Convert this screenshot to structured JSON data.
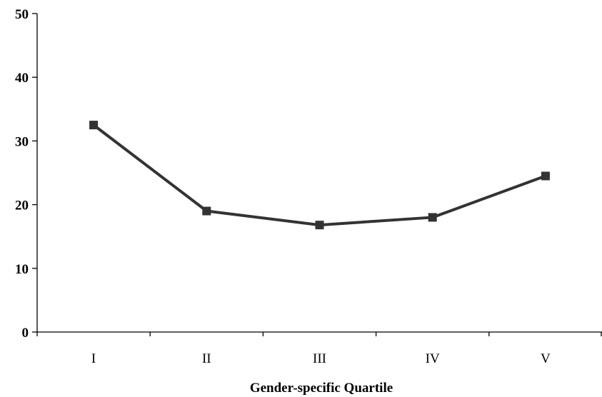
{
  "chart_data": {
    "type": "line",
    "categories": [
      "I",
      "II",
      "III",
      "IV",
      "V"
    ],
    "series": [
      {
        "values": [
          32.5,
          19.0,
          16.8,
          18.0,
          24.5
        ],
        "color": "#333333",
        "marker": "square"
      }
    ],
    "xlabel": "Gender-specific Quartile",
    "ylabel": "",
    "ylim": [
      0,
      50
    ],
    "yticks": [
      0,
      10,
      20,
      30,
      40,
      50
    ],
    "grid": false,
    "legend": "none"
  }
}
